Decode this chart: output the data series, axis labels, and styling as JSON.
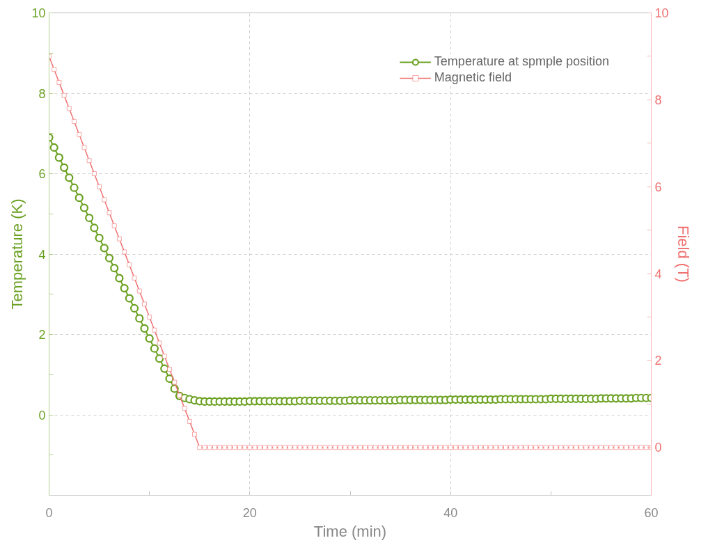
{
  "chart_data": {
    "type": "line",
    "xlabel": "Time (min)",
    "ylabel": "Temperature (K)",
    "y2label": "Field (T)",
    "x": [
      0,
      0.5,
      1,
      1.5,
      2,
      2.5,
      3,
      3.5,
      4,
      4.5,
      5,
      5.5,
      6,
      6.5,
      7,
      7.5,
      8,
      8.5,
      9,
      9.5,
      10,
      10.5,
      11,
      11.5,
      12,
      12.5,
      13,
      13.5,
      14,
      14.5,
      15,
      15.5,
      16,
      16.5,
      17,
      17.5,
      18,
      18.5,
      19,
      19.5,
      20,
      20.5,
      21,
      21.5,
      22,
      22.5,
      23,
      23.5,
      24,
      24.5,
      25,
      25.5,
      26,
      26.5,
      27,
      27.5,
      28,
      28.5,
      29,
      29.5,
      30,
      30.5,
      31,
      31.5,
      32,
      32.5,
      33,
      33.5,
      34,
      34.5,
      35,
      35.5,
      36,
      36.5,
      37,
      37.5,
      38,
      38.5,
      39,
      39.5,
      40,
      40.5,
      41,
      41.5,
      42,
      42.5,
      43,
      43.5,
      44,
      44.5,
      45,
      45.5,
      46,
      46.5,
      47,
      47.5,
      48,
      48.5,
      49,
      49.5,
      50,
      50.5,
      51,
      51.5,
      52,
      52.5,
      53,
      53.5,
      54,
      54.5,
      55,
      55.5,
      56,
      56.5,
      57,
      57.5,
      58,
      58.5,
      59,
      59.5,
      60
    ],
    "series": [
      {
        "name": "Temperature at spmple position",
        "color": "#6aa121",
        "marker": "circle",
        "values": [
          6.9,
          6.65,
          6.4,
          6.15,
          5.9,
          5.65,
          5.4,
          5.15,
          4.9,
          4.65,
          4.4,
          4.15,
          3.9,
          3.65,
          3.4,
          3.15,
          2.9,
          2.65,
          2.4,
          2.15,
          1.9,
          1.65,
          1.4,
          1.15,
          0.9,
          0.65,
          0.47,
          0.42,
          0.39,
          0.36,
          0.34,
          0.33,
          0.33,
          0.33,
          0.33,
          0.33,
          0.33,
          0.33,
          0.33,
          0.33,
          0.34,
          0.34,
          0.34,
          0.34,
          0.34,
          0.34,
          0.34,
          0.34,
          0.34,
          0.34,
          0.35,
          0.35,
          0.35,
          0.35,
          0.35,
          0.35,
          0.35,
          0.35,
          0.35,
          0.35,
          0.36,
          0.36,
          0.36,
          0.36,
          0.36,
          0.36,
          0.36,
          0.36,
          0.36,
          0.36,
          0.37,
          0.37,
          0.37,
          0.37,
          0.37,
          0.37,
          0.37,
          0.37,
          0.37,
          0.37,
          0.38,
          0.38,
          0.38,
          0.38,
          0.38,
          0.38,
          0.38,
          0.38,
          0.38,
          0.38,
          0.39,
          0.39,
          0.39,
          0.39,
          0.39,
          0.39,
          0.39,
          0.39,
          0.39,
          0.39,
          0.4,
          0.4,
          0.4,
          0.4,
          0.4,
          0.4,
          0.4,
          0.4,
          0.4,
          0.4,
          0.41,
          0.41,
          0.41,
          0.41,
          0.41,
          0.41,
          0.41,
          0.42,
          0.42,
          0.42,
          0.42
        ]
      },
      {
        "name": "Magnetic field",
        "color": "#f07070",
        "marker": "square",
        "axis": "y2",
        "values": [
          9,
          8.7,
          8.4,
          8.1,
          7.8,
          7.5,
          7.2,
          6.9,
          6.6,
          6.3,
          6,
          5.7,
          5.4,
          5.1,
          4.8,
          4.5,
          4.2,
          3.9,
          3.6,
          3.3,
          3,
          2.7,
          2.4,
          2.1,
          1.8,
          1.5,
          1.2,
          0.9,
          0.6,
          0.3,
          0,
          0,
          0,
          0,
          0,
          0,
          0,
          0,
          0,
          0,
          0,
          0,
          0,
          0,
          0,
          0,
          0,
          0,
          0,
          0,
          0,
          0,
          0,
          0,
          0,
          0,
          0,
          0,
          0,
          0,
          0,
          0,
          0,
          0,
          0,
          0,
          0,
          0,
          0,
          0,
          0,
          0,
          0,
          0,
          0,
          0,
          0,
          0,
          0,
          0,
          0,
          0,
          0,
          0,
          0,
          0,
          0,
          0,
          0,
          0,
          0,
          0,
          0,
          0,
          0,
          0,
          0,
          0,
          0,
          0,
          0,
          0,
          0,
          0,
          0,
          0,
          0,
          0,
          0,
          0,
          0,
          0,
          0,
          0,
          0,
          0,
          0,
          0,
          0,
          0,
          0
        ]
      }
    ],
    "xlim": [
      0,
      60
    ],
    "xticks": [
      0,
      {
        "value": 10,
        "label": null
      },
      20,
      {
        "value": 30,
        "label": null
      },
      40,
      {
        "value": 50,
        "label": null
      },
      60
    ],
    "ylim": [
      -2,
      10
    ],
    "yticks": [
      {
        "value": -1,
        "label": null
      },
      0,
      {
        "value": 1,
        "label": null
      },
      2,
      {
        "value": 3,
        "label": null
      },
      4,
      {
        "value": 5,
        "label": null
      },
      6,
      {
        "value": 7,
        "label": null
      },
      8,
      {
        "value": 9,
        "label": null
      },
      10
    ],
    "y2lim": [
      -1.1,
      10
    ],
    "y2ticks": [
      0,
      {
        "value": 1,
        "label": null
      },
      2,
      {
        "value": 3,
        "label": null
      },
      4,
      {
        "value": 5,
        "label": null
      },
      6,
      {
        "value": 7,
        "label": null
      },
      8,
      {
        "value": 9,
        "label": null
      },
      10
    ],
    "grid": true,
    "legend": "top right",
    "line_style": "solid"
  }
}
